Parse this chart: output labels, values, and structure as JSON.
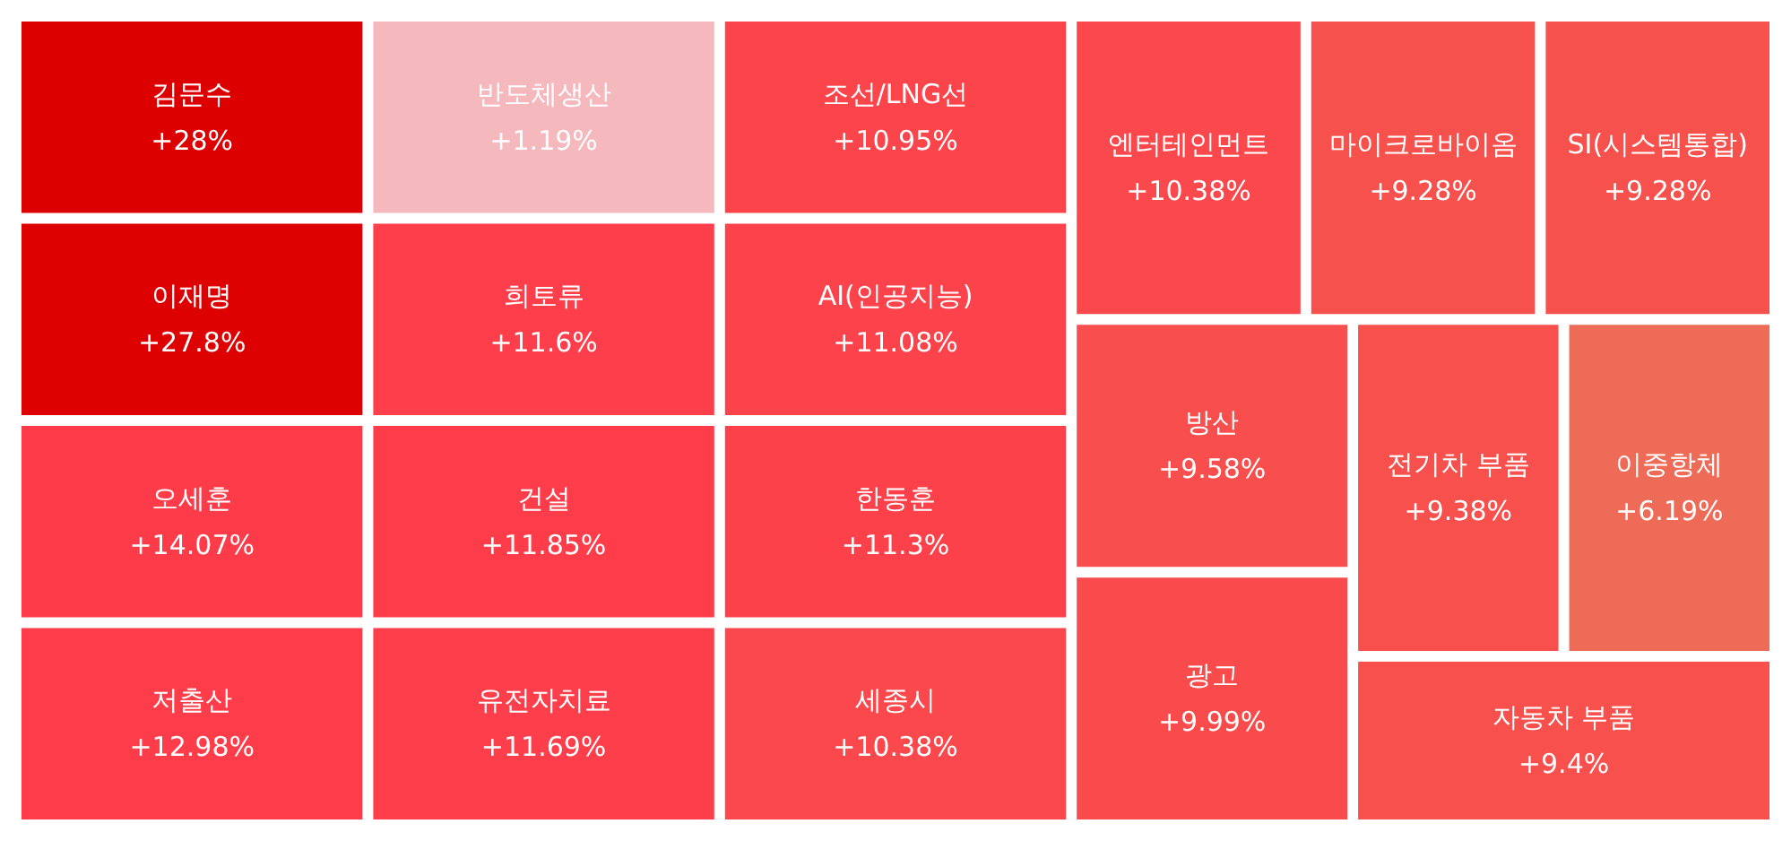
{
  "chart_data": {
    "type": "other",
    "categories": [
      "김문수",
      "이재명",
      "오세훈",
      "저출산",
      "반도체생산",
      "희토류",
      "건설",
      "유전자치료",
      "조선/LNG선",
      "AI(인공지능)",
      "한동훈",
      "세종시",
      "엔터테인먼트",
      "마이크로바이옴",
      "SI(시스템통합)",
      "방산",
      "광고",
      "전기차 부품",
      "이중항체",
      "자동차 부품"
    ],
    "values": [
      28,
      27.8,
      14.07,
      12.98,
      1.19,
      11.6,
      11.85,
      11.69,
      10.95,
      11.08,
      11.3,
      10.38,
      10.38,
      9.28,
      9.28,
      9.58,
      9.99,
      9.38,
      6.19,
      9.4
    ],
    "value_labels": [
      "+28%",
      "+27.8%",
      "+14.07%",
      "+12.98%",
      "+1.19%",
      "+11.6%",
      "+11.85%",
      "+11.69%",
      "+10.95%",
      "+11.08%",
      "+11.3%",
      "+10.38%",
      "+10.38%",
      "+9.28%",
      "+9.28%",
      "+9.58%",
      "+9.99%",
      "+9.38%",
      "+6.19%",
      "+9.4%"
    ]
  }
}
